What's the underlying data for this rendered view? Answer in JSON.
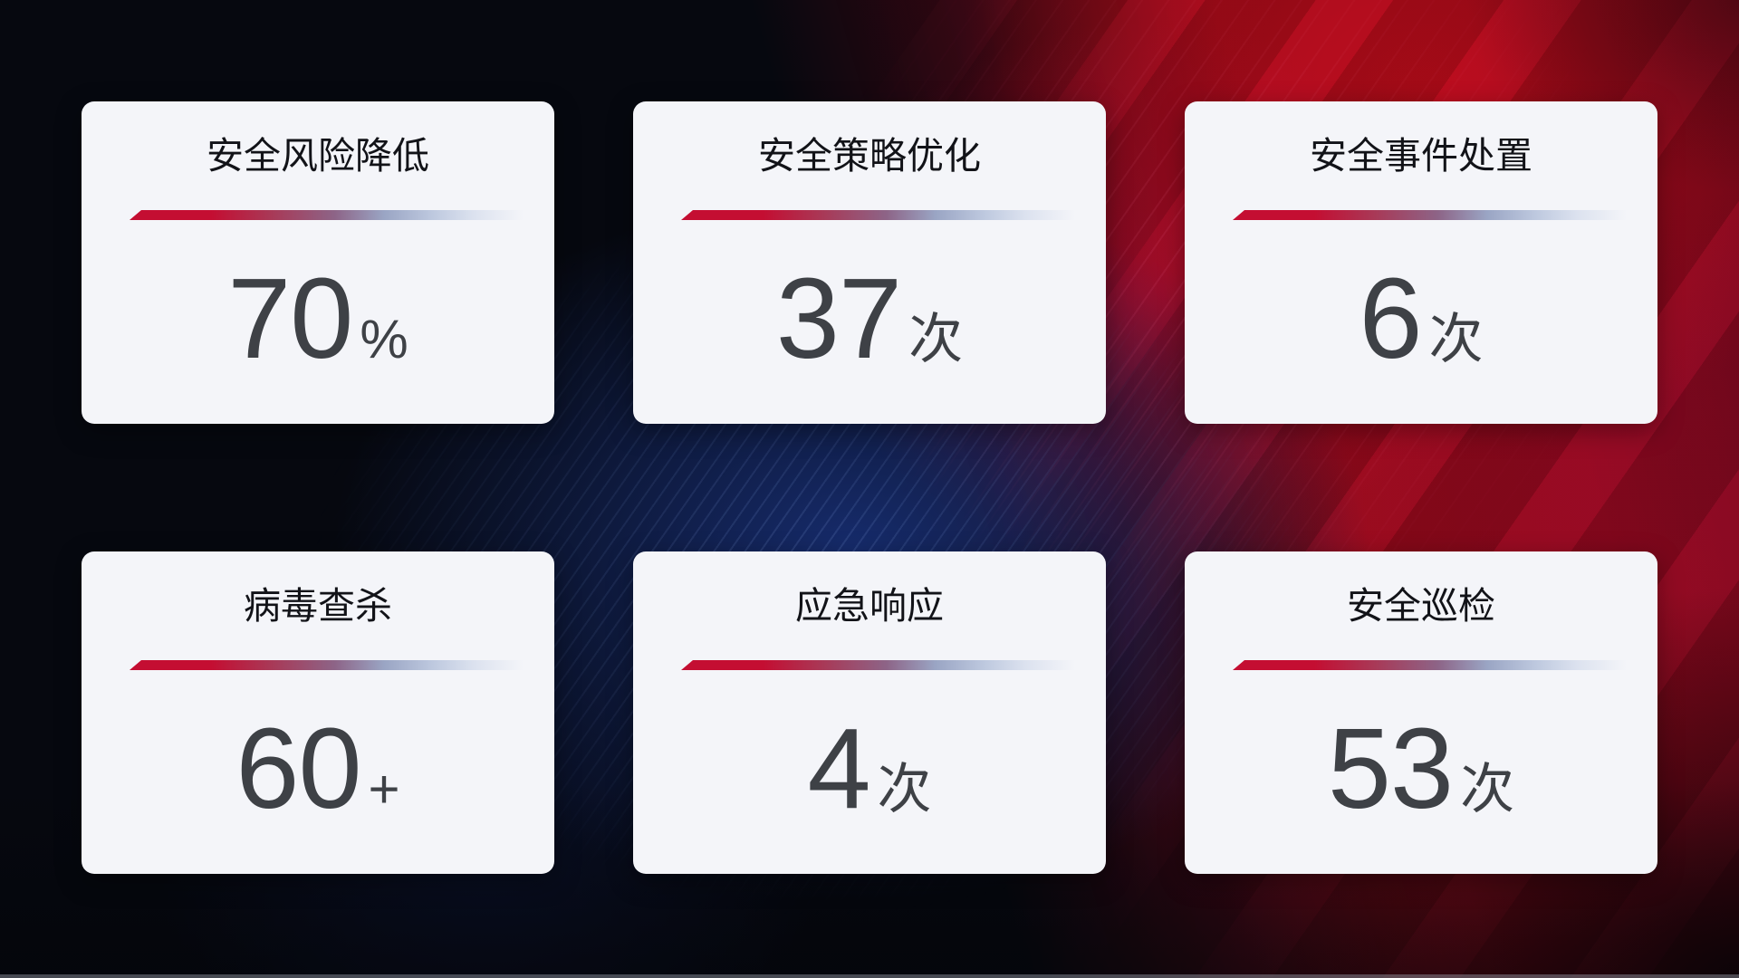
{
  "dashboard": {
    "cards": [
      {
        "title": "安全风险降低",
        "value": "70",
        "unit": "%"
      },
      {
        "title": "安全策略优化",
        "value": "37",
        "unit": "次"
      },
      {
        "title": "安全事件处置",
        "value": "6",
        "unit": "次"
      },
      {
        "title": "病毒查杀",
        "value": "60",
        "unit": "+"
      },
      {
        "title": "应急响应",
        "value": "4",
        "unit": "次"
      },
      {
        "title": "安全巡检",
        "value": "53",
        "unit": "次"
      }
    ],
    "colors": {
      "card_background": "#f4f5f9",
      "title_text": "#121318",
      "value_text": "#3e4146",
      "divider_red": "#c40e32",
      "divider_light_blue": "#dce2ef",
      "background_dark_navy": "#06080f",
      "background_blue_glow": "#172d70",
      "background_red": "#9e0a1a",
      "background_crimson": "#bc0b33"
    }
  }
}
